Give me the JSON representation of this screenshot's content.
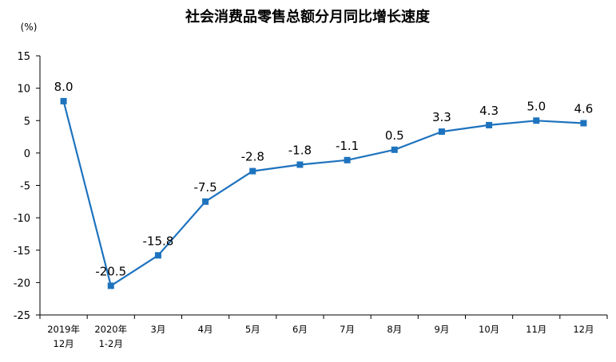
{
  "chart_data": {
    "type": "line",
    "title": "社会消费品零售总额分月同比增长速度",
    "unit_label": "(%)",
    "xlabel": "",
    "ylabel": "",
    "ylim": [
      -25,
      15
    ],
    "yticks": [
      "15",
      "10",
      "5",
      "0",
      "-5",
      "-10",
      "-15",
      "-20",
      "-25"
    ],
    "ytick_values": [
      15,
      10,
      5,
      0,
      -5,
      -10,
      -15,
      -20,
      -25
    ],
    "grid": false,
    "legend": "none",
    "categories": [
      [
        "2019年",
        "12月"
      ],
      [
        "2020年",
        "1-2月"
      ],
      [
        "3月"
      ],
      [
        "4月"
      ],
      [
        "5月"
      ],
      [
        "6月"
      ],
      [
        "7月"
      ],
      [
        "8月"
      ],
      [
        "9月"
      ],
      [
        "10月"
      ],
      [
        "11月"
      ],
      [
        "12月"
      ]
    ],
    "series": [
      {
        "values": [
          8.0,
          -20.5,
          -15.8,
          -7.5,
          -2.8,
          -1.8,
          -1.1,
          0.5,
          3.3,
          4.3,
          5.0,
          4.6
        ],
        "labels": [
          "8.0",
          "-20.5",
          "-15.8",
          "-7.5",
          "-2.8",
          "-1.8",
          "-1.1",
          "0.5",
          "3.3",
          "4.3",
          "5.0",
          "4.6"
        ],
        "color": "#1e73be",
        "marker": "square"
      }
    ]
  }
}
